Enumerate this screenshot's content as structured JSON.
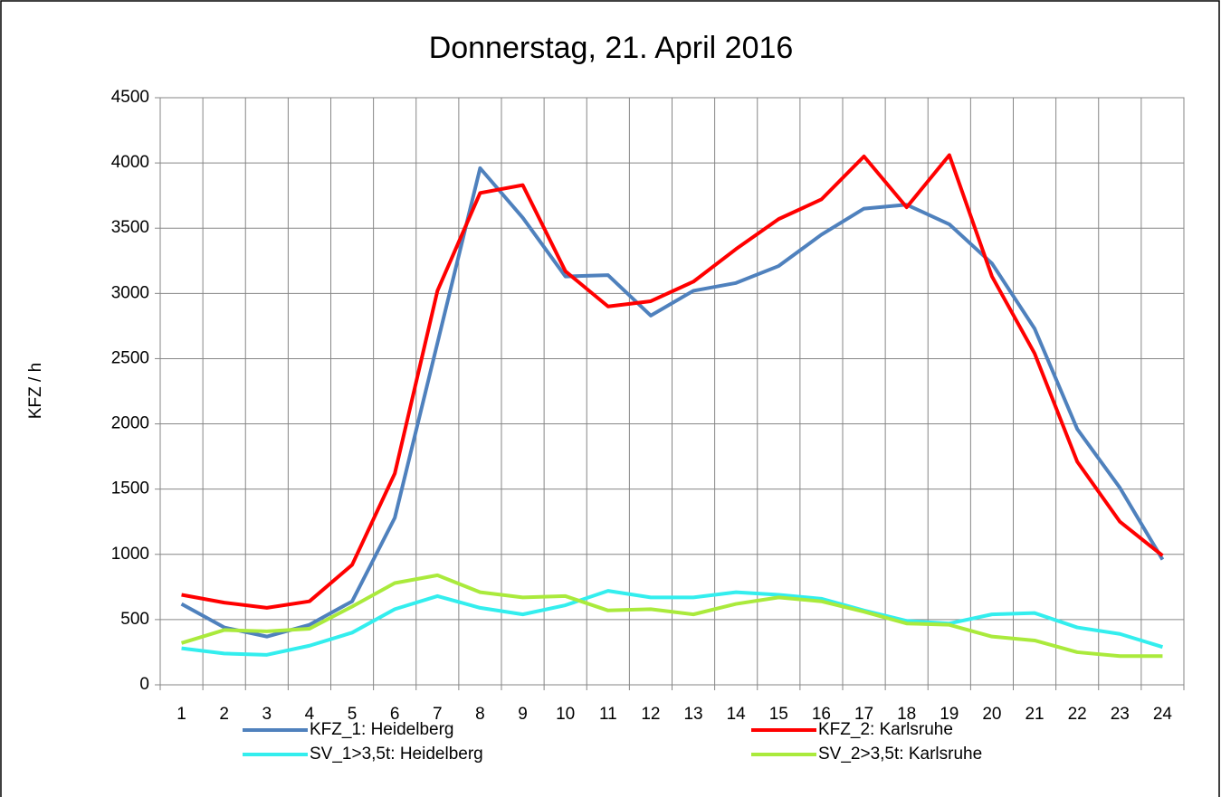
{
  "chart_data": {
    "type": "line",
    "title": "Donnerstag, 21. April 2016",
    "y_label": "KFZ / h",
    "categories": [
      "1",
      "2",
      "3",
      "4",
      "5",
      "6",
      "7",
      "8",
      "9",
      "10",
      "11",
      "12",
      "13",
      "14",
      "15",
      "16",
      "17",
      "18",
      "19",
      "20",
      "21",
      "22",
      "23",
      "24"
    ],
    "ylim": [
      0,
      4500
    ],
    "yticks": [
      0,
      500,
      1000,
      1500,
      2000,
      2500,
      3000,
      3500,
      4000,
      4500
    ],
    "grid": true,
    "legend": "bottom",
    "series": [
      {
        "name": "KFZ_1: Heidelberg",
        "color": "#4f81bd",
        "values": [
          620,
          440,
          370,
          460,
          640,
          1280,
          2620,
          3960,
          3580,
          3130,
          3140,
          2830,
          3020,
          3080,
          3210,
          3450,
          3650,
          3680,
          3530,
          3230,
          2730,
          1960,
          1510,
          960
        ]
      },
      {
        "name": "KFZ_2: Karlsruhe",
        "color": "#ff0000",
        "values": [
          690,
          630,
          590,
          640,
          920,
          1620,
          3020,
          3770,
          3830,
          3170,
          2900,
          2940,
          3090,
          3340,
          3570,
          3720,
          4050,
          3660,
          4060,
          3130,
          2540,
          1710,
          1250,
          990
        ]
      },
      {
        "name": "SV_1>3,5t: Heidelberg",
        "color": "#33eeee",
        "values": [
          280,
          240,
          230,
          300,
          400,
          580,
          680,
          590,
          540,
          610,
          720,
          670,
          670,
          710,
          690,
          660,
          570,
          490,
          470,
          540,
          550,
          440,
          390,
          290
        ]
      },
      {
        "name": "SV_2>3,5t: Karlsruhe",
        "color": "#aaea3c",
        "values": [
          320,
          420,
          410,
          430,
          600,
          780,
          840,
          710,
          670,
          680,
          570,
          580,
          540,
          620,
          670,
          640,
          560,
          470,
          460,
          370,
          340,
          250,
          220,
          220
        ]
      }
    ]
  }
}
